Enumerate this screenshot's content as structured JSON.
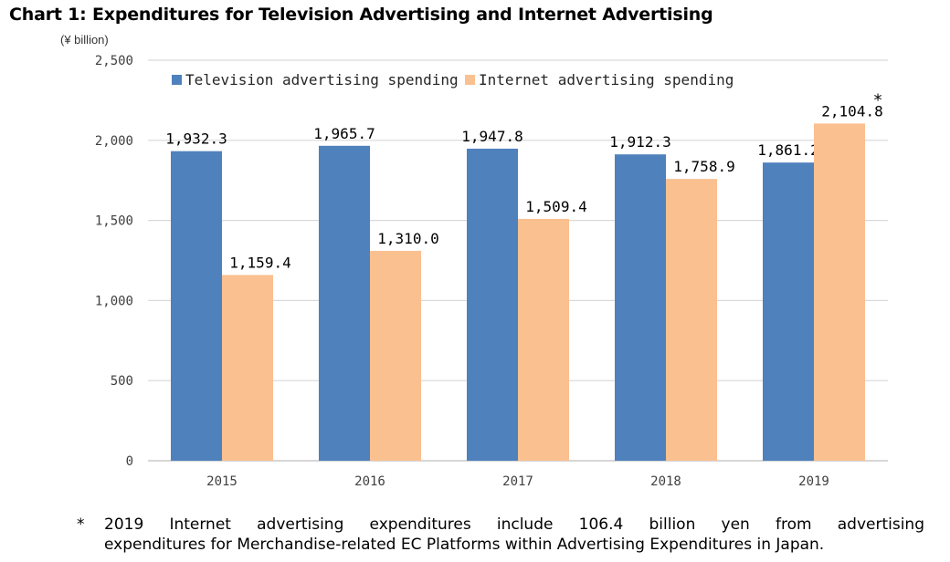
{
  "title": "Chart 1: Expenditures for Television Advertising and Internet Advertising",
  "unit_label": "(¥ billion)",
  "footnote": {
    "marker": "*",
    "line1": "2019 Internet advertising expenditures include 106.4 billion yen from advertising",
    "line2": "expenditures for Merchandise-related EC Platforms within Advertising Expenditures in Japan."
  },
  "chart_data": {
    "type": "bar",
    "title": "Chart 1: Expenditures for Television Advertising and Internet Advertising",
    "ylabel": "(¥ billion)",
    "categories": [
      "2015",
      "2016",
      "2017",
      "2018",
      "2019"
    ],
    "series": [
      {
        "name": "Television advertising spending",
        "values": [
          1932.3,
          1965.7,
          1947.8,
          1912.3,
          1861.2
        ],
        "labels": [
          "1,932.3",
          "1,965.7",
          "1,947.8",
          "1,912.3",
          "1,861.2"
        ],
        "color": "#4f81bd"
      },
      {
        "name": "Internet advertising spending",
        "values": [
          1159.4,
          1310.0,
          1509.4,
          1758.9,
          2104.8
        ],
        "labels": [
          "1,159.4",
          "1,310.0",
          "1,509.4",
          "1,758.9",
          "2,104.8"
        ],
        "color": "#fac090"
      }
    ],
    "annotations": [
      {
        "series": 1,
        "category": "2019",
        "text": "*"
      }
    ],
    "yticks": [
      0,
      500,
      1000,
      1500,
      2000,
      2500
    ],
    "ytick_labels": [
      "0",
      "500",
      "1,000",
      "1,500",
      "2,000",
      "2,500"
    ],
    "ylim": [
      0,
      2500
    ],
    "grid": true,
    "legend_position": "top"
  }
}
